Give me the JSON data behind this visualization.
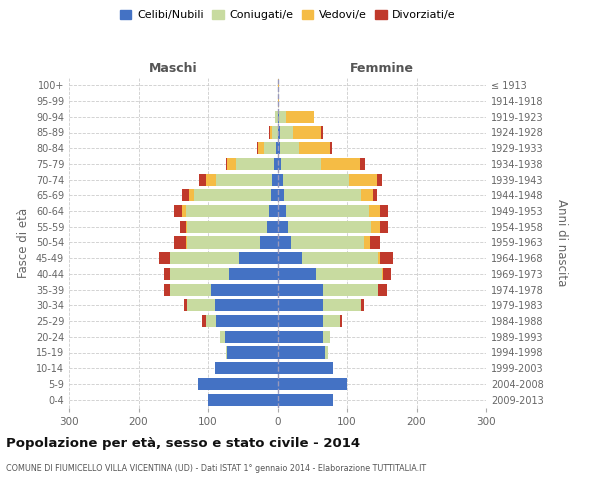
{
  "age_groups": [
    "0-4",
    "5-9",
    "10-14",
    "15-19",
    "20-24",
    "25-29",
    "30-34",
    "35-39",
    "40-44",
    "45-49",
    "50-54",
    "55-59",
    "60-64",
    "65-69",
    "70-74",
    "75-79",
    "80-84",
    "85-89",
    "90-94",
    "95-99",
    "100+"
  ],
  "birth_years": [
    "2009-2013",
    "2004-2008",
    "1999-2003",
    "1994-1998",
    "1989-1993",
    "1984-1988",
    "1979-1983",
    "1974-1978",
    "1969-1973",
    "1964-1968",
    "1959-1963",
    "1954-1958",
    "1949-1953",
    "1944-1948",
    "1939-1943",
    "1934-1938",
    "1929-1933",
    "1924-1928",
    "1919-1923",
    "1914-1918",
    "≤ 1913"
  ],
  "males": {
    "celibe": [
      100,
      115,
      90,
      72,
      75,
      88,
      90,
      95,
      70,
      55,
      25,
      15,
      12,
      10,
      8,
      5,
      2,
      0,
      0,
      0,
      0
    ],
    "coniugato": [
      0,
      0,
      0,
      2,
      8,
      15,
      40,
      60,
      85,
      100,
      105,
      115,
      120,
      110,
      80,
      55,
      18,
      8,
      3,
      0,
      0
    ],
    "vedovo": [
      0,
      0,
      0,
      0,
      0,
      0,
      0,
      0,
      0,
      0,
      1,
      2,
      5,
      8,
      15,
      12,
      8,
      3,
      1,
      0,
      0
    ],
    "divorziato": [
      0,
      0,
      0,
      0,
      0,
      5,
      5,
      8,
      8,
      15,
      18,
      8,
      12,
      10,
      10,
      2,
      2,
      1,
      0,
      0,
      0
    ]
  },
  "females": {
    "nubile": [
      80,
      100,
      80,
      68,
      65,
      65,
      65,
      65,
      55,
      35,
      20,
      15,
      12,
      10,
      8,
      5,
      3,
      3,
      2,
      0,
      0
    ],
    "coniugata": [
      0,
      0,
      0,
      5,
      10,
      25,
      55,
      80,
      95,
      110,
      105,
      120,
      120,
      110,
      95,
      58,
      28,
      20,
      10,
      0,
      0
    ],
    "vedova": [
      0,
      0,
      0,
      0,
      0,
      0,
      0,
      0,
      2,
      3,
      8,
      12,
      15,
      18,
      40,
      55,
      45,
      40,
      40,
      2,
      2
    ],
    "divorziata": [
      0,
      0,
      0,
      0,
      0,
      3,
      5,
      12,
      12,
      18,
      15,
      12,
      12,
      5,
      8,
      8,
      3,
      2,
      0,
      0,
      0
    ]
  },
  "colors": {
    "celibe": "#4472C4",
    "coniugato": "#c8dba0",
    "vedovo": "#f5bc45",
    "divorziato": "#c0392b"
  },
  "xlim": 300,
  "title": "Popolazione per età, sesso e stato civile - 2014",
  "subtitle": "COMUNE DI FIUMICELLO VILLA VICENTINA (UD) - Dati ISTAT 1° gennaio 2014 - Elaborazione TUTTITALIA.IT",
  "ylabel_left": "Fasce di età",
  "ylabel_right": "Anni di nascita",
  "legend_labels": [
    "Celibi/Nubili",
    "Coniugati/e",
    "Vedovi/e",
    "Divorziati/e"
  ],
  "maschi_label": "Maschi",
  "femmine_label": "Femmine",
  "background_color": "#ffffff",
  "grid_color": "#cccccc"
}
